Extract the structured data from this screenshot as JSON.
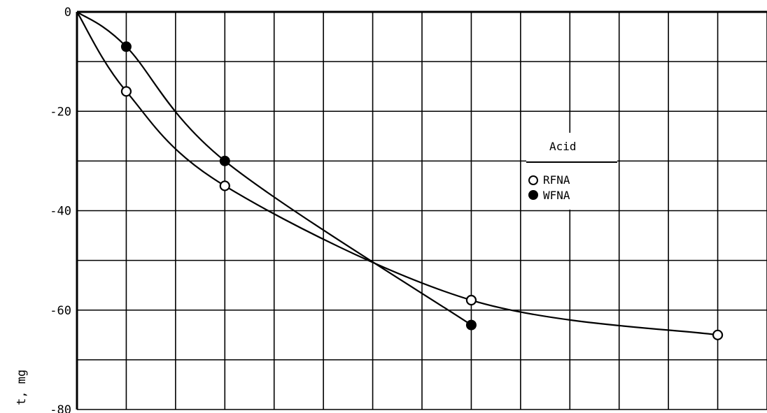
{
  "chart_data": {
    "type": "line",
    "title": "",
    "xlabel": "",
    "ylabel": "t, mg",
    "ylim": [
      -80,
      0
    ],
    "y_ticks": [
      {
        "value": 0,
        "label": "0"
      },
      {
        "value": -20,
        "label": "-20"
      },
      {
        "value": -40,
        "label": "-40"
      },
      {
        "value": -60,
        "label": "-60"
      },
      {
        "value": -80,
        "label": "-80"
      }
    ],
    "x_grid_count": 14,
    "y_grid_step": 10,
    "grid": true,
    "legend": {
      "title": "Acid",
      "placement": "center-right",
      "entries": [
        {
          "name": "RFNA",
          "marker": "open-circle"
        },
        {
          "name": "WFNA",
          "marker": "filled-circle"
        }
      ]
    },
    "series": [
      {
        "name": "RFNA",
        "marker": "open-circle",
        "color": "#000000",
        "points": [
          {
            "x": 0,
            "y": 0,
            "marker": false
          },
          {
            "x": 1,
            "y": -16
          },
          {
            "x": 3,
            "y": -35
          },
          {
            "x": 8,
            "y": -58
          },
          {
            "x": 13,
            "y": -65
          }
        ]
      },
      {
        "name": "WFNA",
        "marker": "filled-circle",
        "color": "#000000",
        "points": [
          {
            "x": 0,
            "y": 0,
            "marker": false
          },
          {
            "x": 1,
            "y": -7
          },
          {
            "x": 3,
            "y": -30
          },
          {
            "x": 8,
            "y": -63
          }
        ]
      }
    ]
  }
}
